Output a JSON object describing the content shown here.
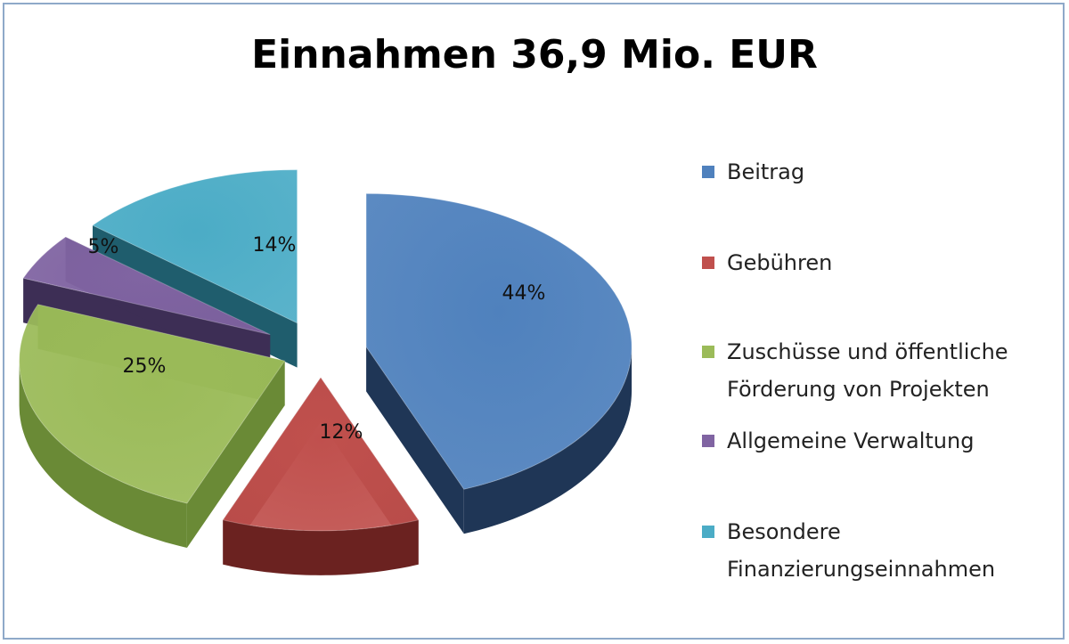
{
  "chart_data": {
    "type": "pie",
    "title": "Einnahmen 36,9 Mio. EUR",
    "categories": [
      "Beitrag",
      "Gebühren",
      "Zuschüsse und öffentliche Förderung von Projekten",
      "Allgemeine Verwaltung",
      "Besondere Finanzierungseinnahmen"
    ],
    "values": [
      44,
      12,
      25,
      5,
      14
    ],
    "data_labels": [
      "44%",
      "12%",
      "25%",
      "5%",
      "14%"
    ],
    "colors": [
      "#4f81bd",
      "#c0504d",
      "#9bbb59",
      "#8064a2",
      "#4bacc6"
    ],
    "side_colors": [
      "#1f3656",
      "#6b2220",
      "#6a8a36",
      "#3d2e55",
      "#1f5d6d"
    ],
    "legend_position": "right",
    "exploded": true,
    "style": "3d"
  },
  "legend": {
    "items": [
      "Beitrag",
      "Gebühren",
      "Zuschüsse und öffentliche\nFörderung von Projekten",
      "Allgemeine Verwaltung",
      "Besondere\nFinanzierungseinnahmen"
    ]
  }
}
